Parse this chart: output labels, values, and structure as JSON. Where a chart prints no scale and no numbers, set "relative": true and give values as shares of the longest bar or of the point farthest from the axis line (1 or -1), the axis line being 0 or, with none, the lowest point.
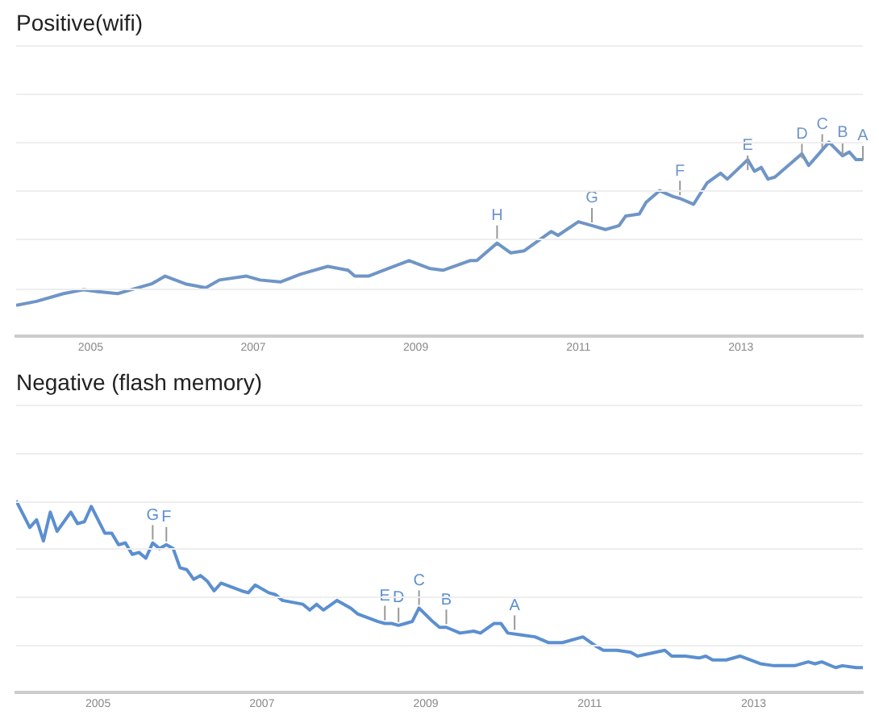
{
  "chart_data": [
    {
      "type": "line",
      "title": "Positive(wifi)",
      "relative": true,
      "grid": "y",
      "legend": false,
      "tick_labels": "x",
      "marker": "none",
      "line_style": "solid",
      "xlim": [
        "2004-02",
        "2014-07"
      ],
      "xticks": [
        "2005",
        "2007",
        "2009",
        "2011",
        "2013"
      ],
      "series": [
        {
          "color": "#6f95c6",
          "x": [
            "2004-02",
            "2004-05",
            "2004-09",
            "2004-12",
            "2005-02",
            "2005-05",
            "2005-07",
            "2005-10",
            "2005-12",
            "2006-03",
            "2006-06",
            "2006-08",
            "2006-12",
            "2007-02",
            "2007-05",
            "2007-08",
            "2007-12",
            "2008-03",
            "2008-04",
            "2008-06",
            "2008-09",
            "2008-12",
            "2009-03",
            "2009-05",
            "2009-09",
            "2009-10",
            "2010-01",
            "2010-03",
            "2010-05",
            "2010-09",
            "2010-10",
            "2011-01",
            "2011-03",
            "2011-05",
            "2011-07",
            "2011-08",
            "2011-10",
            "2011-11",
            "2012-01",
            "2012-03",
            "2012-04",
            "2012-06",
            "2012-08",
            "2012-10",
            "2012-11",
            "2013-02",
            "2013-03",
            "2013-04",
            "2013-05",
            "2013-06",
            "2013-10",
            "2013-11",
            "2014-02",
            "2014-04",
            "2014-05",
            "2014-06",
            "2014-07"
          ],
          "values": [
            0.16,
            0.18,
            0.22,
            0.24,
            0.23,
            0.22,
            0.24,
            0.27,
            0.31,
            0.27,
            0.25,
            0.29,
            0.31,
            0.29,
            0.28,
            0.32,
            0.36,
            0.34,
            0.31,
            0.31,
            0.35,
            0.39,
            0.35,
            0.34,
            0.39,
            0.39,
            0.48,
            0.43,
            0.44,
            0.54,
            0.52,
            0.59,
            0.57,
            0.55,
            0.57,
            0.62,
            0.63,
            0.69,
            0.75,
            0.72,
            0.71,
            0.68,
            0.79,
            0.84,
            0.81,
            0.91,
            0.85,
            0.87,
            0.81,
            0.82,
            0.94,
            0.88,
            1,
            0.93,
            0.95,
            0.91,
            0.91
          ]
        }
      ],
      "annotations": [
        {
          "text": "H",
          "x": "2010-01",
          "y": 0.48
        },
        {
          "text": "G",
          "x": "2011-03",
          "y": 0.57
        },
        {
          "text": "F",
          "x": "2012-04",
          "y": 0.71
        },
        {
          "text": "E",
          "x": "2013-02",
          "y": 0.84
        },
        {
          "text": "D",
          "x": "2013-10",
          "y": 0.9
        },
        {
          "text": "C",
          "x": "2014-01",
          "y": 0.95
        },
        {
          "text": "B",
          "x": "2014-04",
          "y": 0.91
        },
        {
          "text": "A",
          "x": "2014-07",
          "y": 0.89
        }
      ]
    },
    {
      "type": "line",
      "title": "Negative (flash memory)",
      "relative": true,
      "grid": "y",
      "legend": false,
      "tick_labels": "x",
      "marker": "none",
      "line_style": "solid",
      "xlim": [
        "2004-01",
        "2014-05"
      ],
      "xticks": [
        "2005",
        "2007",
        "2009",
        "2011",
        "2013"
      ],
      "series": [
        {
          "color": "#5b8fd0",
          "x": [
            "2004-01",
            "2004-03",
            "2004-04",
            "2004-05",
            "2004-06",
            "2004-07",
            "2004-09",
            "2004-10",
            "2004-11",
            "2004-12",
            "2005-02",
            "2005-03",
            "2005-04",
            "2005-05",
            "2005-06",
            "2005-07",
            "2005-08",
            "2005-09",
            "2005-10",
            "2005-11",
            "2005-12",
            "2006-01",
            "2006-02",
            "2006-03",
            "2006-04",
            "2006-05",
            "2006-06",
            "2006-07",
            "2006-10",
            "2006-11",
            "2006-12",
            "2007-02",
            "2007-03",
            "2007-04",
            "2007-07",
            "2007-08",
            "2007-09",
            "2007-10",
            "2007-12",
            "2008-02",
            "2008-03",
            "2008-06",
            "2008-07",
            "2008-08",
            "2008-09",
            "2008-10",
            "2008-11",
            "2008-12",
            "2009-02",
            "2009-03",
            "2009-04",
            "2009-06",
            "2009-08",
            "2009-09",
            "2009-11",
            "2009-12",
            "2010-01",
            "2010-03",
            "2010-05",
            "2010-07",
            "2010-09",
            "2010-12",
            "2011-02",
            "2011-03",
            "2011-05",
            "2011-07",
            "2011-08",
            "2011-12",
            "2012-01",
            "2012-03",
            "2012-05",
            "2012-06",
            "2012-07",
            "2012-09",
            "2012-11",
            "2013-02",
            "2013-04",
            "2013-07",
            "2013-09",
            "2013-10",
            "2013-11",
            "2014-01",
            "2014-02",
            "2014-04",
            "2014-05"
          ],
          "values": [
            1,
            0.86,
            0.9,
            0.79,
            0.94,
            0.84,
            0.94,
            0.88,
            0.89,
            0.97,
            0.83,
            0.83,
            0.77,
            0.78,
            0.72,
            0.73,
            0.7,
            0.78,
            0.75,
            0.77,
            0.75,
            0.65,
            0.64,
            0.59,
            0.61,
            0.58,
            0.53,
            0.57,
            0.53,
            0.52,
            0.56,
            0.52,
            0.51,
            0.48,
            0.46,
            0.43,
            0.46,
            0.43,
            0.48,
            0.44,
            0.41,
            0.37,
            0.36,
            0.36,
            0.35,
            0.36,
            0.37,
            0.44,
            0.37,
            0.34,
            0.34,
            0.31,
            0.32,
            0.31,
            0.36,
            0.36,
            0.31,
            0.3,
            0.29,
            0.26,
            0.26,
            0.29,
            0.24,
            0.22,
            0.22,
            0.21,
            0.19,
            0.22,
            0.19,
            0.19,
            0.18,
            0.19,
            0.17,
            0.17,
            0.19,
            0.15,
            0.14,
            0.14,
            0.16,
            0.15,
            0.16,
            0.13,
            0.14,
            0.13,
            0.13
          ]
        }
      ],
      "annotations": [
        {
          "text": "G",
          "x": "2005-09",
          "y": 0.78
        },
        {
          "text": "F",
          "x": "2005-11",
          "y": 0.77
        },
        {
          "text": "E",
          "x": "2008-07",
          "y": 0.36
        },
        {
          "text": "D",
          "x": "2008-09",
          "y": 0.35
        },
        {
          "text": "C",
          "x": "2008-12",
          "y": 0.44
        },
        {
          "text": "B",
          "x": "2009-04",
          "y": 0.34
        },
        {
          "text": "A",
          "x": "2010-02",
          "y": 0.31
        }
      ]
    }
  ]
}
